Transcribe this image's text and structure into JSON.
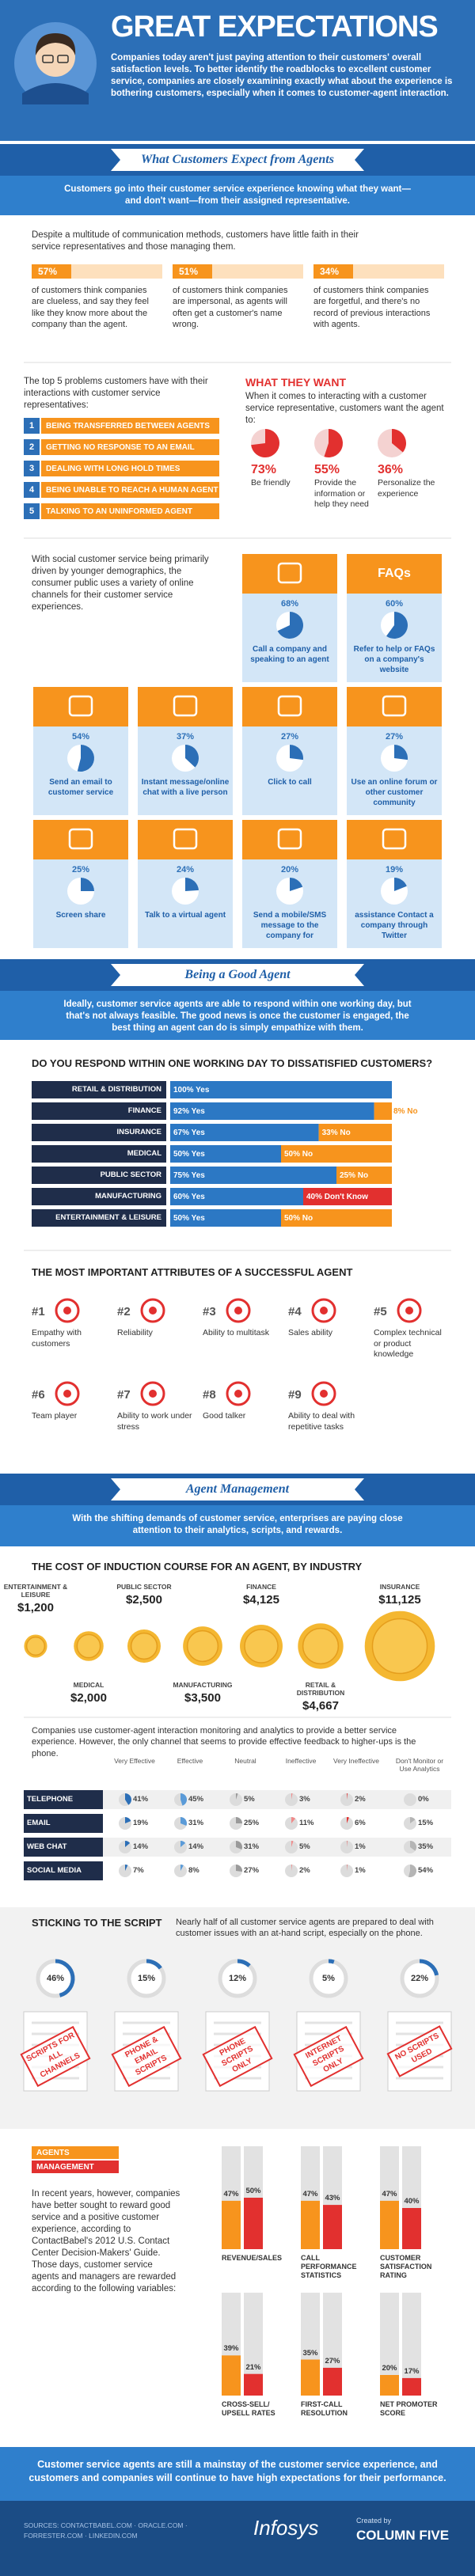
{
  "header": {
    "title": "GREAT EXPECTATIONS",
    "intro": "Companies today aren't just paying attention to their customers' overall satisfaction levels. To better identify the roadblocks to excellent customer service, companies are closely examining exactly what about the experience is bothering customers, especially when it comes to customer-agent interaction."
  },
  "expect": {
    "banner": "What Customers Expect from Agents",
    "intro": "Customers go into their customer service experience knowing what they want—and don't want—from their assigned representative.",
    "lead": "Despite a multitude of communication methods, customers have little faith in their service representatives and those managing them.",
    "stats": [
      {
        "value": "57%",
        "text": "of customers think companies are clueless, and say they feel like they know more about the company than the agent."
      },
      {
        "value": "51%",
        "text": "of customers think companies are impersonal, as agents will often get a customer's name wrong."
      },
      {
        "value": "34%",
        "text": "of customers think companies are forgetful, and there's no record of previous interactions with agents."
      }
    ]
  },
  "problems": {
    "intro": "The top 5 problems customers have with their interactions with customer service representatives:",
    "items": [
      {
        "rank": "1",
        "text": "BEING TRANSFERRED BETWEEN AGENTS"
      },
      {
        "rank": "2",
        "text": "GETTING NO RESPONSE TO AN EMAIL"
      },
      {
        "rank": "3",
        "text": "DEALING WITH LONG HOLD TIMES"
      },
      {
        "rank": "4",
        "text": "BEING UNABLE TO REACH A HUMAN AGENT"
      },
      {
        "rank": "5",
        "text": "TALKING TO AN UNINFORMED AGENT"
      }
    ]
  },
  "wants": {
    "title": "WHAT THEY WANT",
    "intro": "When it comes to interacting with a customer service representative, customers want the agent to:",
    "color": "#e2302f",
    "items": [
      {
        "value": 73,
        "label": "73%",
        "text": "Be friendly"
      },
      {
        "value": 55,
        "label": "55%",
        "text": "Provide the information or help they need"
      },
      {
        "value": 36,
        "label": "36%",
        "text": "Personalize the experience"
      }
    ]
  },
  "channels": {
    "intro": "With social customer service being primarily driven by younger demographics, the consumer public uses a variety of online channels for their customer service experiences.",
    "color": "#2c6fb7",
    "items": [
      {
        "value": 68,
        "label": "68%",
        "text": "Call a company and speaking to an agent"
      },
      {
        "value": 60,
        "label": "60%",
        "text": "Refer to help or FAQs on a company's website",
        "icon_text": "FAQs"
      },
      {
        "value": 54,
        "label": "54%",
        "text": "Send an email to customer service"
      },
      {
        "value": 37,
        "label": "37%",
        "text": "Instant message/online chat with a live person"
      },
      {
        "value": 27,
        "label": "27%",
        "text": "Click to call"
      },
      {
        "value": 27,
        "label": "27%",
        "text": "Use an online forum or other customer community"
      },
      {
        "value": 25,
        "label": "25%",
        "text": "Screen share"
      },
      {
        "value": 24,
        "label": "24%",
        "text": "Talk to a virtual agent"
      },
      {
        "value": 20,
        "label": "20%",
        "text": "Send a mobile/SMS message to the company for"
      },
      {
        "value": 19,
        "label": "19%",
        "text": "assistance Contact a company through Twitter"
      }
    ]
  },
  "good_agent": {
    "banner": "Being a Good Agent",
    "intro": "Ideally, customer service agents are able to respond within one working day, but that's not always feasible. The good news is once the customer is engaged, the best thing an agent can do is simply empathize with them."
  },
  "respond": {
    "title": "DO YOU RESPOND WITHIN ONE WORKING DAY TO DISSATISFIED CUSTOMERS?",
    "rows": [
      {
        "name": "RETAIL & DISTRIBUTION",
        "segments": [
          {
            "value": 100,
            "label": "100% Yes",
            "color": "#2c78c4"
          }
        ]
      },
      {
        "name": "FINANCE",
        "segments": [
          {
            "value": 92,
            "label": "92% Yes",
            "color": "#2c78c4"
          },
          {
            "value": 8,
            "label": "8% No",
            "color": "#f7941d"
          }
        ]
      },
      {
        "name": "INSURANCE",
        "segments": [
          {
            "value": 67,
            "label": "67% Yes",
            "color": "#2c78c4"
          },
          {
            "value": 33,
            "label": "33% No",
            "color": "#f7941d"
          }
        ]
      },
      {
        "name": "MEDICAL",
        "segments": [
          {
            "value": 50,
            "label": "50% Yes",
            "color": "#2c78c4"
          },
          {
            "value": 50,
            "label": "50% No",
            "color": "#f7941d"
          }
        ]
      },
      {
        "name": "PUBLIC SECTOR",
        "segments": [
          {
            "value": 75,
            "label": "75% Yes",
            "color": "#2c78c4"
          },
          {
            "value": 25,
            "label": "25% No",
            "color": "#f7941d"
          }
        ]
      },
      {
        "name": "MANUFACTURING",
        "segments": [
          {
            "value": 60,
            "label": "60% Yes",
            "color": "#2c78c4"
          },
          {
            "value": 40,
            "label": "40% Don't Know",
            "color": "#e2302f"
          }
        ]
      },
      {
        "name": "ENTERTAINMENT & LEISURE",
        "segments": [
          {
            "value": 50,
            "label": "50% Yes",
            "color": "#2c78c4"
          },
          {
            "value": 50,
            "label": "50% No",
            "color": "#f7941d"
          }
        ]
      }
    ]
  },
  "attributes": {
    "title": "THE MOST IMPORTANT ATTRIBUTES OF A SUCCESSFUL AGENT",
    "items": [
      {
        "rank": "#1",
        "text": "Empathy with customers"
      },
      {
        "rank": "#2",
        "text": "Reliability"
      },
      {
        "rank": "#3",
        "text": "Ability to multitask"
      },
      {
        "rank": "#4",
        "text": "Sales ability"
      },
      {
        "rank": "#5",
        "text": "Complex technical or product knowledge"
      },
      {
        "rank": "#6",
        "text": "Team player"
      },
      {
        "rank": "#7",
        "text": "Ability to work under stress"
      },
      {
        "rank": "#8",
        "text": "Good talker"
      },
      {
        "rank": "#9",
        "text": "Ability to deal with repetitive tasks"
      }
    ]
  },
  "management": {
    "banner": "Agent Management",
    "intro": "With the shifting demands of customer service, enterprises are paying close attention to their analytics, scripts, and rewards."
  },
  "cost": {
    "title": "THE COST OF INDUCTION COURSE FOR AN AGENT, BY INDUSTRY",
    "items": [
      {
        "name": "ENTERTAINMENT & LEISURE",
        "value": 1200,
        "label": "$1,200"
      },
      {
        "name": "MEDICAL",
        "value": 2000,
        "label": "$2,000"
      },
      {
        "name": "PUBLIC SECTOR",
        "value": 2500,
        "label": "$2,500"
      },
      {
        "name": "MANUFACTURING",
        "value": 3500,
        "label": "$3,500"
      },
      {
        "name": "FINANCE",
        "value": 4125,
        "label": "$4,125"
      },
      {
        "name": "RETAIL & DISTRIBUTION",
        "value": 4667,
        "label": "$4,667"
      },
      {
        "name": "INSURANCE",
        "value": 11125,
        "label": "$11,125"
      }
    ]
  },
  "analytics": {
    "intro": "Companies use customer-agent interaction monitoring and analytics to provide a better service experience. However, the only channel that seems to provide effective feedback to higher-ups is the phone.",
    "columns": [
      "Very Effective",
      "Effective",
      "Neutral",
      "Ineffective",
      "Very Ineffective",
      "Don't Monitor or Use Analytics"
    ],
    "colors": [
      "#2c6fb7",
      "#5b9bd8",
      "#9a9a9a",
      "#f08a8a",
      "#e2302f",
      "#b5b5b5"
    ],
    "rows": [
      {
        "name": "TELEPHONE",
        "values": [
          41,
          45,
          5,
          3,
          2,
          0
        ],
        "labels": [
          "41%",
          "45%",
          "5%",
          "3%",
          "2%",
          "0%"
        ]
      },
      {
        "name": "EMAIL",
        "values": [
          19,
          31,
          25,
          11,
          6,
          15
        ],
        "labels": [
          "19%",
          "31%",
          "25%",
          "11%",
          "6%",
          "15%"
        ]
      },
      {
        "name": "WEB CHAT",
        "values": [
          14,
          14,
          31,
          5,
          1,
          35
        ],
        "labels": [
          "14%",
          "14%",
          "31%",
          "5%",
          "1%",
          "35%"
        ]
      },
      {
        "name": "SOCIAL MEDIA",
        "values": [
          7,
          8,
          27,
          2,
          1,
          54
        ],
        "labels": [
          "7%",
          "8%",
          "27%",
          "2%",
          "1%",
          "54%"
        ]
      }
    ]
  },
  "script": {
    "title": "STICKING TO THE SCRIPT",
    "intro": "Nearly half of all customer service agents are prepared to deal with customer issues with an at-hand script, especially on the phone.",
    "color": "#2c6fb7",
    "items": [
      {
        "value": 46,
        "label": "46%",
        "stamp": "SCRIPTS FOR ALL CHANNELS"
      },
      {
        "value": 15,
        "label": "15%",
        "stamp": "PHONE & EMAIL SCRIPTS"
      },
      {
        "value": 12,
        "label": "12%",
        "stamp": "PHONE SCRIPTS ONLY"
      },
      {
        "value": 5,
        "label": "5%",
        "stamp": "INTERNET SCRIPTS ONLY"
      },
      {
        "value": 22,
        "label": "22%",
        "stamp": "NO SCRIPTS USED"
      }
    ]
  },
  "rewards": {
    "series": [
      {
        "name": "AGENTS",
        "color": "#f7941d"
      },
      {
        "name": "MANAGEMENT",
        "color": "#e2302f"
      }
    ],
    "text": "In recent years, however, companies have better sought to reward good service and a positive customer experience, according to ContactBabel's 2012 U.S. Contact Center Decision-Makers' Guide. Those days, customer service agents and managers are rewarded according to the following variables:",
    "ylim": [
      0,
      100
    ],
    "groups": [
      {
        "name": "REVENUE/SALES",
        "values": [
          47,
          50
        ],
        "labels": [
          "47%",
          "50%"
        ]
      },
      {
        "name": "CALL PERFORMANCE STATISTICS",
        "values": [
          47,
          43
        ],
        "labels": [
          "47%",
          "43%"
        ]
      },
      {
        "name": "CUSTOMER SATISFACTION RATING",
        "values": [
          47,
          40
        ],
        "labels": [
          "47%",
          "40%"
        ]
      },
      {
        "name": "CROSS-SELL/ UPSELL RATES",
        "values": [
          39,
          21
        ],
        "labels": [
          "39%",
          "21%"
        ]
      },
      {
        "name": "FIRST-CALL RESOLUTION",
        "values": [
          35,
          27
        ],
        "labels": [
          "35%",
          "27%"
        ]
      },
      {
        "name": "NET PROMOTER SCORE",
        "values": [
          20,
          17
        ],
        "labels": [
          "20%",
          "17%"
        ]
      }
    ]
  },
  "footer": {
    "conclusion": "Customer service agents are still a mainstay of the customer service experience, and customers and companies will continue to have high expectations for their performance.",
    "sources": "SOURCES: CONTACTBABEL.COM · ORACLE.COM · FORRESTER.COM · LINKEDIN.COM",
    "brand": "Infosys",
    "created_by": "Created by",
    "creator": "COLUMN FIVE"
  }
}
